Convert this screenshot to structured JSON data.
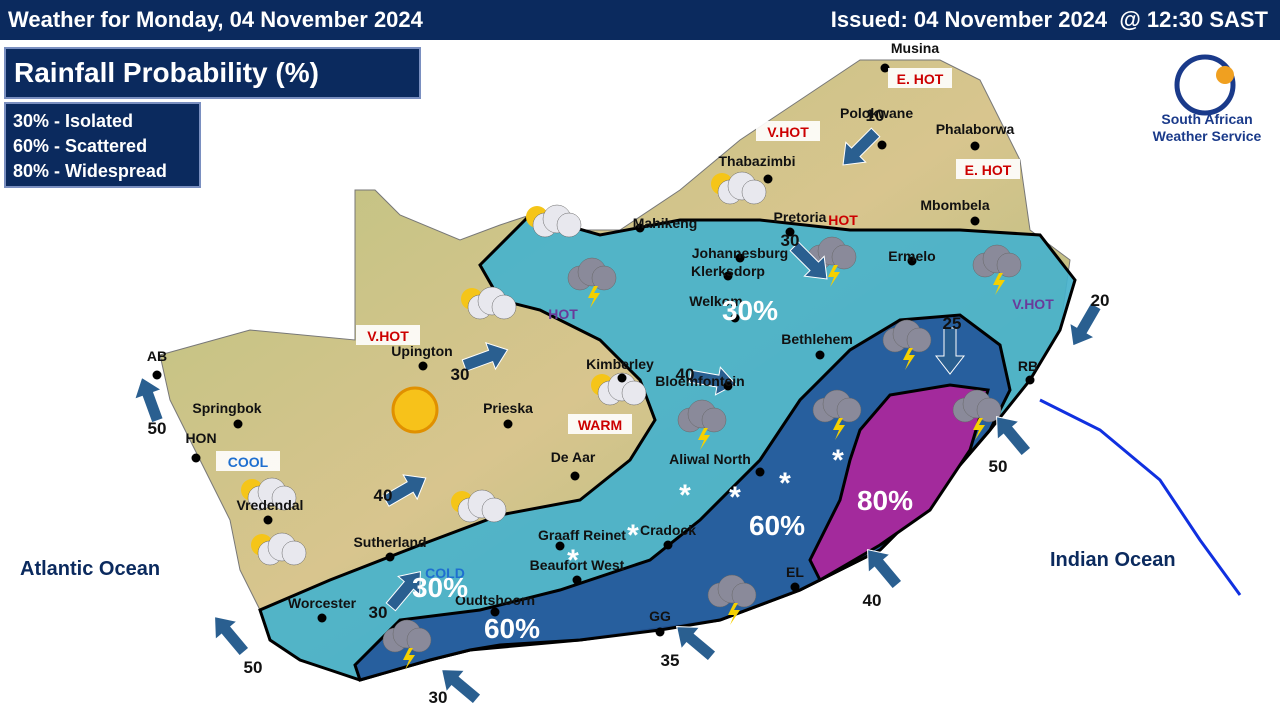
{
  "header": {
    "title": "Weather for Monday, 04 November 2024",
    "issued": "Issued: 04 November 2024  @ 12:30 SAST"
  },
  "panel_title": "Rainfall Probability (%)",
  "legend": [
    "30% - Isolated",
    "60% - Scattered",
    "80% - Widespread"
  ],
  "logo": {
    "line1": "South African",
    "line2": "Weather Service"
  },
  "oceans": [
    "Atlantic Ocean",
    "Indian Ocean"
  ],
  "towns": [
    "Musina",
    "Polokwane",
    "Phalaborwa",
    "Thabazimbi",
    "Mbombela",
    "Mahikeng",
    "Pretoria",
    "Johannesburg",
    "Klerksdorp",
    "Ermelo",
    "Welkom",
    "Bethlehem",
    "Kimberley",
    "Bloemfontein",
    "Upington",
    "Prieska",
    "Springbok",
    "HON",
    "AB",
    "De Aar",
    "Aliwal North",
    "Sutherland",
    "Graaff Reinet",
    "Cradock",
    "Beaufort West",
    "Worcester",
    "Oudtshoorn",
    "Vredendal",
    "RB",
    "EL",
    "GG"
  ],
  "temperature_labels": [
    "E. HOT",
    "V.HOT",
    "E. HOT",
    "V.HOT",
    "HOT",
    "HOT",
    "V.HOT",
    "WARM",
    "COOL",
    "COLD"
  ],
  "probability_labels": [
    "30%",
    "60%",
    "80%",
    "30%",
    "60%"
  ],
  "wind_labels": [
    10,
    30,
    40,
    20,
    50,
    50,
    40,
    35,
    30,
    50,
    30,
    40,
    30,
    25
  ]
}
